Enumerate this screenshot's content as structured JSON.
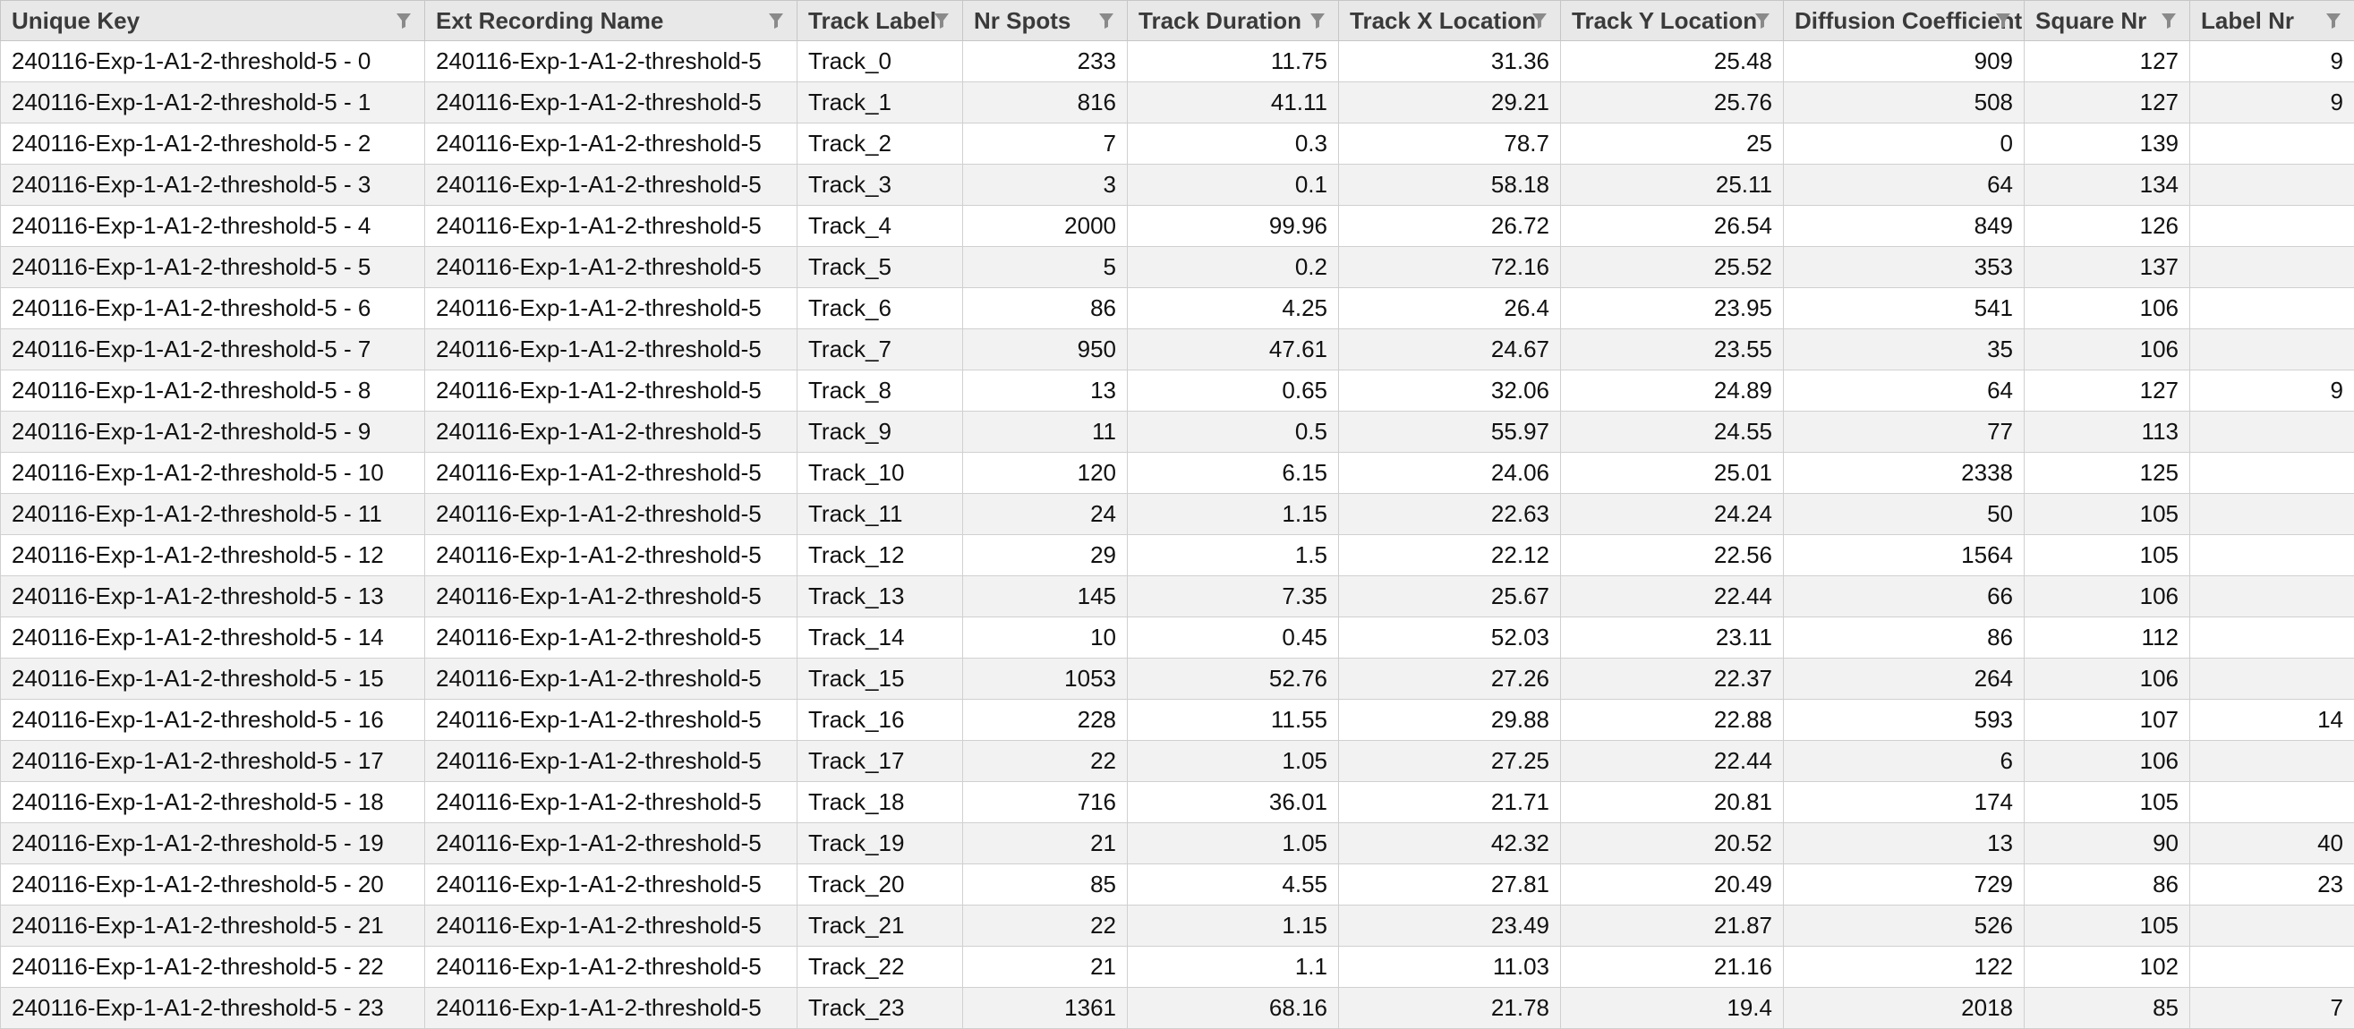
{
  "columns": [
    {
      "label": "Unique Key",
      "align": "txt"
    },
    {
      "label": "Ext Recording Name",
      "align": "txt"
    },
    {
      "label": "Track Label",
      "align": "txt"
    },
    {
      "label": "Nr Spots",
      "align": "num"
    },
    {
      "label": "Track Duration",
      "align": "num"
    },
    {
      "label": "Track X Location",
      "align": "num"
    },
    {
      "label": "Track Y Location",
      "align": "num"
    },
    {
      "label": "Diffusion Coefficient",
      "align": "num"
    },
    {
      "label": "Square Nr",
      "align": "num"
    },
    {
      "label": "Label Nr",
      "align": "num"
    }
  ],
  "rows": [
    [
      "240116-Exp-1-A1-2-threshold-5 - 0",
      "240116-Exp-1-A1-2-threshold-5",
      "Track_0",
      "233",
      "11.75",
      "31.36",
      "25.48",
      "909",
      "127",
      "9"
    ],
    [
      "240116-Exp-1-A1-2-threshold-5 - 1",
      "240116-Exp-1-A1-2-threshold-5",
      "Track_1",
      "816",
      "41.11",
      "29.21",
      "25.76",
      "508",
      "127",
      "9"
    ],
    [
      "240116-Exp-1-A1-2-threshold-5 - 2",
      "240116-Exp-1-A1-2-threshold-5",
      "Track_2",
      "7",
      "0.3",
      "78.7",
      "25",
      "0",
      "139",
      ""
    ],
    [
      "240116-Exp-1-A1-2-threshold-5 - 3",
      "240116-Exp-1-A1-2-threshold-5",
      "Track_3",
      "3",
      "0.1",
      "58.18",
      "25.11",
      "64",
      "134",
      ""
    ],
    [
      "240116-Exp-1-A1-2-threshold-5 - 4",
      "240116-Exp-1-A1-2-threshold-5",
      "Track_4",
      "2000",
      "99.96",
      "26.72",
      "26.54",
      "849",
      "126",
      ""
    ],
    [
      "240116-Exp-1-A1-2-threshold-5 - 5",
      "240116-Exp-1-A1-2-threshold-5",
      "Track_5",
      "5",
      "0.2",
      "72.16",
      "25.52",
      "353",
      "137",
      ""
    ],
    [
      "240116-Exp-1-A1-2-threshold-5 - 6",
      "240116-Exp-1-A1-2-threshold-5",
      "Track_6",
      "86",
      "4.25",
      "26.4",
      "23.95",
      "541",
      "106",
      ""
    ],
    [
      "240116-Exp-1-A1-2-threshold-5 - 7",
      "240116-Exp-1-A1-2-threshold-5",
      "Track_7",
      "950",
      "47.61",
      "24.67",
      "23.55",
      "35",
      "106",
      ""
    ],
    [
      "240116-Exp-1-A1-2-threshold-5 - 8",
      "240116-Exp-1-A1-2-threshold-5",
      "Track_8",
      "13",
      "0.65",
      "32.06",
      "24.89",
      "64",
      "127",
      "9"
    ],
    [
      "240116-Exp-1-A1-2-threshold-5 - 9",
      "240116-Exp-1-A1-2-threshold-5",
      "Track_9",
      "11",
      "0.5",
      "55.97",
      "24.55",
      "77",
      "113",
      ""
    ],
    [
      "240116-Exp-1-A1-2-threshold-5 - 10",
      "240116-Exp-1-A1-2-threshold-5",
      "Track_10",
      "120",
      "6.15",
      "24.06",
      "25.01",
      "2338",
      "125",
      ""
    ],
    [
      "240116-Exp-1-A1-2-threshold-5 - 11",
      "240116-Exp-1-A1-2-threshold-5",
      "Track_11",
      "24",
      "1.15",
      "22.63",
      "24.24",
      "50",
      "105",
      ""
    ],
    [
      "240116-Exp-1-A1-2-threshold-5 - 12",
      "240116-Exp-1-A1-2-threshold-5",
      "Track_12",
      "29",
      "1.5",
      "22.12",
      "22.56",
      "1564",
      "105",
      ""
    ],
    [
      "240116-Exp-1-A1-2-threshold-5 - 13",
      "240116-Exp-1-A1-2-threshold-5",
      "Track_13",
      "145",
      "7.35",
      "25.67",
      "22.44",
      "66",
      "106",
      ""
    ],
    [
      "240116-Exp-1-A1-2-threshold-5 - 14",
      "240116-Exp-1-A1-2-threshold-5",
      "Track_14",
      "10",
      "0.45",
      "52.03",
      "23.11",
      "86",
      "112",
      ""
    ],
    [
      "240116-Exp-1-A1-2-threshold-5 - 15",
      "240116-Exp-1-A1-2-threshold-5",
      "Track_15",
      "1053",
      "52.76",
      "27.26",
      "22.37",
      "264",
      "106",
      ""
    ],
    [
      "240116-Exp-1-A1-2-threshold-5 - 16",
      "240116-Exp-1-A1-2-threshold-5",
      "Track_16",
      "228",
      "11.55",
      "29.88",
      "22.88",
      "593",
      "107",
      "14"
    ],
    [
      "240116-Exp-1-A1-2-threshold-5 - 17",
      "240116-Exp-1-A1-2-threshold-5",
      "Track_17",
      "22",
      "1.05",
      "27.25",
      "22.44",
      "6",
      "106",
      ""
    ],
    [
      "240116-Exp-1-A1-2-threshold-5 - 18",
      "240116-Exp-1-A1-2-threshold-5",
      "Track_18",
      "716",
      "36.01",
      "21.71",
      "20.81",
      "174",
      "105",
      ""
    ],
    [
      "240116-Exp-1-A1-2-threshold-5 - 19",
      "240116-Exp-1-A1-2-threshold-5",
      "Track_19",
      "21",
      "1.05",
      "42.32",
      "20.52",
      "13",
      "90",
      "40"
    ],
    [
      "240116-Exp-1-A1-2-threshold-5 - 20",
      "240116-Exp-1-A1-2-threshold-5",
      "Track_20",
      "85",
      "4.55",
      "27.81",
      "20.49",
      "729",
      "86",
      "23"
    ],
    [
      "240116-Exp-1-A1-2-threshold-5 - 21",
      "240116-Exp-1-A1-2-threshold-5",
      "Track_21",
      "22",
      "1.15",
      "23.49",
      "21.87",
      "526",
      "105",
      ""
    ],
    [
      "240116-Exp-1-A1-2-threshold-5 - 22",
      "240116-Exp-1-A1-2-threshold-5",
      "Track_22",
      "21",
      "1.1",
      "11.03",
      "21.16",
      "122",
      "102",
      ""
    ],
    [
      "240116-Exp-1-A1-2-threshold-5 - 23",
      "240116-Exp-1-A1-2-threshold-5",
      "Track_23",
      "1361",
      "68.16",
      "21.78",
      "19.4",
      "2018",
      "85",
      "7"
    ]
  ],
  "icons": {
    "header_filter": "filter-icon"
  }
}
